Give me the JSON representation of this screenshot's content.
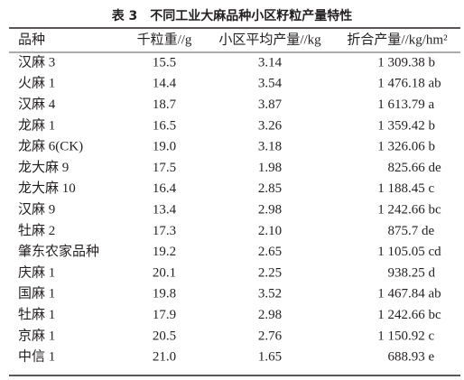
{
  "table": {
    "title": "表 3　不同工业大麻品种小区籽粒产量特性",
    "headers": [
      "品种",
      "千粒重//g",
      "小区平均产量//kg",
      "折合产量//kg/hm²"
    ],
    "rows": [
      [
        "汉麻 3",
        "15.5",
        "3.14",
        "1 309.38 b"
      ],
      [
        "火麻 1",
        "14.4",
        "3.54",
        "1 476.18 ab"
      ],
      [
        "汉麻 4",
        "18.7",
        "3.87",
        "1 613.79 a"
      ],
      [
        "龙麻 1",
        "16.5",
        "3.26",
        "1 359.42 b"
      ],
      [
        "龙麻 6(CK)",
        "19.0",
        "3.18",
        "1 326.06 b"
      ],
      [
        "龙大麻 9",
        "17.5",
        "1.98",
        "825.66 de"
      ],
      [
        "龙大麻 10",
        "16.4",
        "2.85",
        "1 188.45 c"
      ],
      [
        "汉麻 9",
        "13.4",
        "2.98",
        "1 242.66 bc"
      ],
      [
        "牡麻 2",
        "17.3",
        "2.10",
        "875.7 de"
      ],
      [
        "肇东农家品种",
        "19.2",
        "2.65",
        "1 105.05 cd"
      ],
      [
        "庆麻 1",
        "20.1",
        "2.25",
        "938.25 d"
      ],
      [
        "国麻 1",
        "19.8",
        "3.52",
        "1 467.84 ab"
      ],
      [
        "牡麻 1",
        "17.9",
        "2.98",
        "1 242.66 bc"
      ],
      [
        "京麻 1",
        "20.5",
        "2.76",
        "1 150.92 c"
      ],
      [
        "中信 1",
        "21.0",
        "1.65",
        "688.93 e"
      ]
    ]
  }
}
